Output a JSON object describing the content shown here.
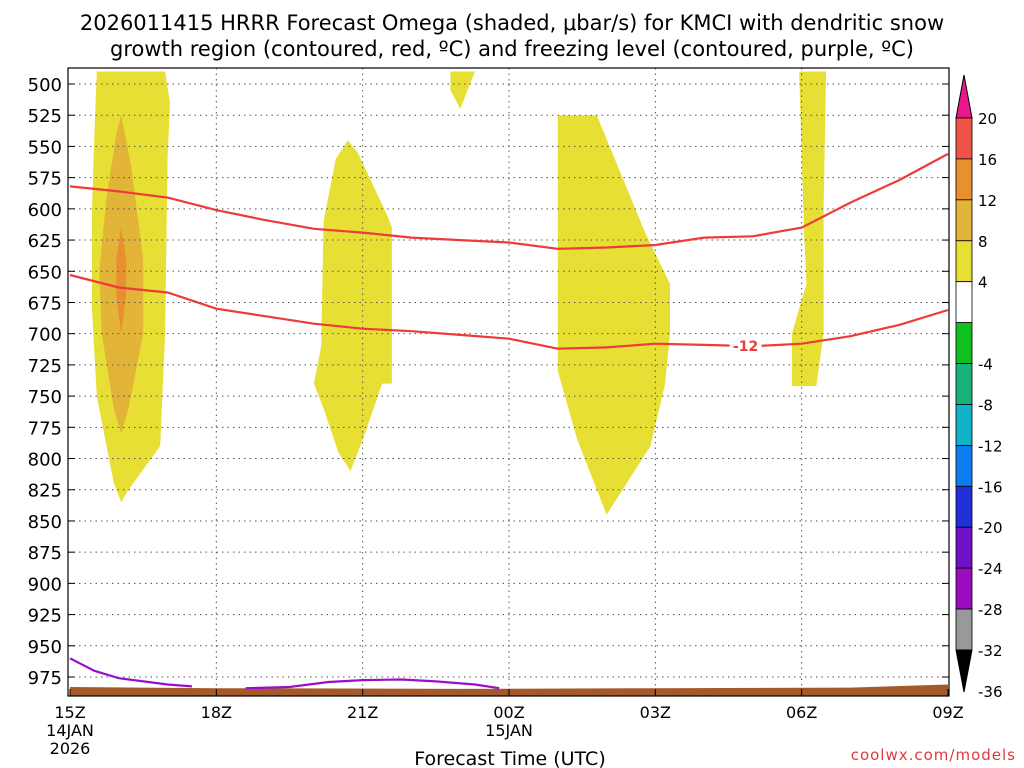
{
  "chart_data": {
    "type": "contour",
    "title_line1": "2026011415 HRRR Forecast Omega (shaded, μbar/s) for KMCI with dendritic snow",
    "title_line2": "growth region (contoured, red, ºC) and freezing level (contoured, purple, ºC)",
    "xlabel": "Forecast Time (UTC)",
    "credit": "coolwx.com/models",
    "x_range": [
      0,
      18
    ],
    "y_range": [
      990,
      490
    ],
    "y_ticks": [
      500,
      525,
      550,
      575,
      600,
      625,
      650,
      675,
      700,
      725,
      750,
      775,
      800,
      825,
      850,
      875,
      900,
      925,
      950,
      975
    ],
    "x_ticks": [
      {
        "x": 0,
        "label": "15Z",
        "sub1": "14JAN",
        "sub2": "2026"
      },
      {
        "x": 3,
        "label": "18Z",
        "sub1": "",
        "sub2": ""
      },
      {
        "x": 6,
        "label": "21Z",
        "sub1": "",
        "sub2": ""
      },
      {
        "x": 9,
        "label": "00Z",
        "sub1": "15JAN",
        "sub2": ""
      },
      {
        "x": 12,
        "label": "03Z",
        "sub1": "",
        "sub2": ""
      },
      {
        "x": 15,
        "label": "06Z",
        "sub1": "",
        "sub2": ""
      },
      {
        "x": 18,
        "label": "09Z",
        "sub1": "",
        "sub2": ""
      }
    ],
    "colorbar": {
      "colors": [
        "#ffffff",
        "#ffffff",
        "#e8df35",
        "#e2b437",
        "#e89030",
        "#f05446",
        "#e8198a",
        "#999999",
        "#9a0cc0",
        "#7010c8",
        "#2030d8",
        "#0a7ef0",
        "#10b4c8",
        "#18b27a",
        "#10c020"
      ],
      "labels": [
        "20",
        "16",
        "12",
        "8",
        "4",
        "-4",
        "-8",
        "-12",
        "-16",
        "-20",
        "-24",
        "-28",
        "-32",
        "-36"
      ],
      "upper_stack": [
        {
          "color": "#f05446"
        },
        {
          "color": "#e89030"
        },
        {
          "color": "#e2b437"
        },
        {
          "color": "#e8df35"
        },
        {
          "color": "#ffffff"
        }
      ],
      "lower_stack": [
        {
          "color": "#10c020"
        },
        {
          "color": "#18b27a"
        },
        {
          "color": "#10b4c8"
        },
        {
          "color": "#0a7ef0"
        },
        {
          "color": "#2030d8"
        },
        {
          "color": "#7010c8"
        },
        {
          "color": "#9a0cc0"
        },
        {
          "color": "#999999"
        }
      ],
      "top_arrow": "#e8198a",
      "bottom_arrow": "#000000"
    },
    "omega_regions": [
      {
        "level": 4,
        "color": "#e8df35",
        "points": [
          [
            0.55,
            490
          ],
          [
            1.95,
            490
          ],
          [
            2.05,
            515
          ],
          [
            2.0,
            560
          ],
          [
            1.95,
            700
          ],
          [
            1.85,
            790
          ],
          [
            1.2,
            825
          ],
          [
            1.05,
            835
          ],
          [
            0.9,
            820
          ],
          [
            0.55,
            750
          ],
          [
            0.45,
            680
          ],
          [
            0.45,
            600
          ],
          [
            0.5,
            540
          ]
        ]
      },
      {
        "level": 8,
        "color": "#e2b437",
        "points": [
          [
            1.05,
            525
          ],
          [
            1.25,
            565
          ],
          [
            1.5,
            640
          ],
          [
            1.5,
            700
          ],
          [
            1.2,
            760
          ],
          [
            1.05,
            780
          ],
          [
            0.9,
            760
          ],
          [
            0.65,
            700
          ],
          [
            0.6,
            650
          ],
          [
            0.75,
            590
          ],
          [
            0.95,
            540
          ]
        ]
      },
      {
        "level": 12,
        "color": "#e89030",
        "points": [
          [
            1.05,
            615
          ],
          [
            1.15,
            640
          ],
          [
            1.15,
            670
          ],
          [
            1.05,
            700
          ],
          [
            0.95,
            670
          ],
          [
            0.95,
            640
          ]
        ]
      },
      {
        "level": 4,
        "color": "#e8df35",
        "points": [
          [
            7.8,
            490
          ],
          [
            8.3,
            490
          ],
          [
            8.0,
            520
          ],
          [
            7.8,
            505
          ]
        ]
      },
      {
        "level": 4,
        "color": "#e8df35",
        "points": [
          [
            5.7,
            545
          ],
          [
            5.9,
            555
          ],
          [
            6.5,
            605
          ],
          [
            6.6,
            615
          ],
          [
            6.6,
            740
          ],
          [
            6.4,
            740
          ],
          [
            6.0,
            785
          ],
          [
            5.75,
            810
          ],
          [
            5.5,
            795
          ],
          [
            5.2,
            760
          ],
          [
            5.0,
            740
          ],
          [
            5.15,
            710
          ],
          [
            5.2,
            610
          ],
          [
            5.45,
            560
          ]
        ]
      },
      {
        "level": 4,
        "color": "#e8df35",
        "points": [
          [
            10.0,
            525
          ],
          [
            10.8,
            525
          ],
          [
            11.8,
            620
          ],
          [
            12.3,
            660
          ],
          [
            12.3,
            700
          ],
          [
            12.2,
            740
          ],
          [
            11.9,
            790
          ],
          [
            11.0,
            845
          ],
          [
            10.4,
            785
          ],
          [
            10.0,
            730
          ],
          [
            10.0,
            640
          ]
        ]
      },
      {
        "level": 4,
        "color": "#e8df35",
        "points": [
          [
            14.95,
            490
          ],
          [
            15.5,
            490
          ],
          [
            15.45,
            600
          ],
          [
            15.45,
            700
          ],
          [
            15.3,
            742
          ],
          [
            14.8,
            742
          ],
          [
            14.8,
            700
          ],
          [
            15.1,
            660
          ],
          [
            15.05,
            620
          ]
        ]
      }
    ],
    "dgz_contours": [
      {
        "label": "",
        "points": [
          [
            0,
            582
          ],
          [
            1,
            586
          ],
          [
            2,
            591
          ],
          [
            3,
            601
          ],
          [
            4,
            609
          ],
          [
            5,
            616
          ],
          [
            6,
            619
          ],
          [
            7,
            623
          ],
          [
            8,
            625
          ],
          [
            9,
            627
          ],
          [
            10,
            632
          ],
          [
            11,
            631
          ],
          [
            12,
            629
          ],
          [
            13,
            623
          ],
          [
            14,
            622
          ],
          [
            15,
            615
          ],
          [
            16,
            595
          ],
          [
            17,
            577
          ],
          [
            18,
            556
          ]
        ]
      },
      {
        "label": "-12",
        "label_x": 13.85,
        "label_y": 710,
        "points": [
          [
            0,
            653
          ],
          [
            1,
            663
          ],
          [
            2,
            667
          ],
          [
            3,
            680
          ],
          [
            4,
            686
          ],
          [
            5,
            692
          ],
          [
            6,
            696
          ],
          [
            7,
            698
          ],
          [
            8,
            701
          ],
          [
            9,
            704
          ],
          [
            10,
            712
          ],
          [
            11,
            711
          ],
          [
            12,
            708
          ],
          [
            13,
            709
          ],
          [
            14,
            710
          ],
          [
            15,
            708
          ],
          [
            16,
            702
          ],
          [
            17,
            693
          ],
          [
            18,
            681
          ]
        ]
      }
    ],
    "freezing_contours": [
      {
        "points": [
          [
            0,
            960
          ],
          [
            0.5,
            970
          ],
          [
            1,
            976
          ],
          [
            2,
            981
          ],
          [
            2.5,
            982.5
          ]
        ]
      },
      {
        "points": [
          [
            3.6,
            984
          ],
          [
            4.5,
            983
          ],
          [
            5.3,
            979
          ],
          [
            6,
            977.5
          ],
          [
            6.8,
            977
          ],
          [
            7.5,
            978.5
          ],
          [
            8.3,
            981
          ],
          [
            8.8,
            984
          ]
        ]
      }
    ],
    "terrain": {
      "top_left_p": 983,
      "top_right_p": 981,
      "bottom_p": 990,
      "color": "#a5582a"
    }
  }
}
